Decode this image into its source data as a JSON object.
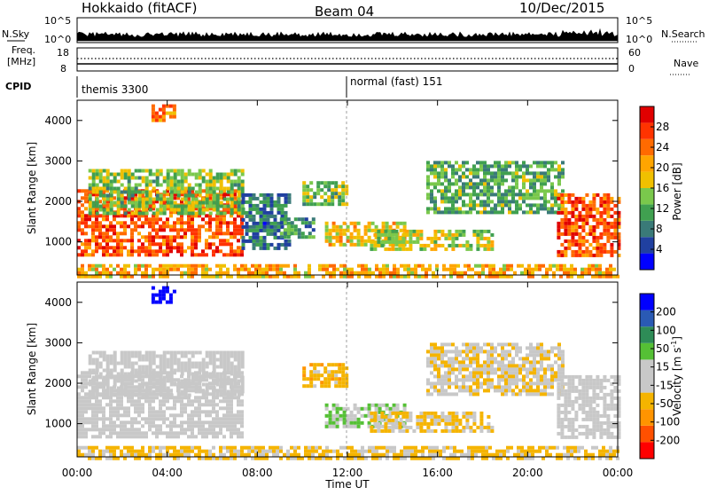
{
  "header": {
    "station": "Hokkaido (fitACF)",
    "beam": "Beam 04",
    "date": "10/Dec/2015"
  },
  "top_panels": {
    "nsky_label": "N.Sky",
    "nsearch_label": "N.Search",
    "noise_ticks": [
      "10^5",
      "10^0"
    ],
    "freq_label_line1": "Freq.",
    "freq_label_line2": "[MHz]",
    "freq_ticks": [
      "18",
      "8"
    ],
    "nave_label": "Nave",
    "nave_ticks": [
      "60",
      "0"
    ],
    "cpid_label": "CPID",
    "cpid_segments": [
      {
        "label": "themis 3300",
        "start_hour": 0,
        "end_hour": 12
      },
      {
        "label": "normal (fast) 151",
        "start_hour": 12,
        "end_hour": 24
      }
    ]
  },
  "colors": {
    "power_scale": [
      "#0000ff",
      "#2040a0",
      "#3a7a78",
      "#40a050",
      "#7ac84c",
      "#f0c000",
      "#ffa500",
      "#ff6a00",
      "#ff3300",
      "#e00000"
    ],
    "velocity_scale": [
      "#ff0000",
      "#ff5000",
      "#ff9400",
      "#f5b400",
      "#c8c8c8",
      "#c8c8c8",
      "#55c035",
      "#2e8c57",
      "#2a5ab4",
      "#0000ff"
    ]
  },
  "x_axis": {
    "label": "Time UT",
    "ticks": [
      "00:00",
      "04:00",
      "08:00",
      "12:00",
      "16:00",
      "20:00",
      "00:00"
    ]
  },
  "power_colorbar": {
    "label": "Power [dB]",
    "ticks": [
      "4",
      "8",
      "12",
      "16",
      "20",
      "24",
      "28"
    ]
  },
  "velocity_colorbar": {
    "label": "Velocity [m s",
    "label_exp": "-1",
    "label_end": "]",
    "ticks": [
      "-200",
      "-100",
      "-50",
      "-15",
      "15",
      "50",
      "100",
      "200"
    ]
  },
  "chart_data": [
    {
      "type": "heatmap",
      "quantity": "Power",
      "xlabel": "Time UT",
      "ylabel": "Slant Range [km]",
      "xlim": [
        0,
        24
      ],
      "ylim": [
        180,
        4500
      ],
      "y_ticks": [
        1000,
        2000,
        3000,
        4000
      ],
      "colorbar_range_db": [
        0,
        32
      ],
      "regions": [
        {
          "t0": 0,
          "t1": 7.3,
          "r0": 700,
          "r1": 2300,
          "value": 26
        },
        {
          "t0": 0.5,
          "t1": 7.3,
          "r0": 1700,
          "r1": 2800,
          "value": 14
        },
        {
          "t0": 7.3,
          "t1": 9.5,
          "r0": 800,
          "r1": 2200,
          "value": 8
        },
        {
          "t0": 9.0,
          "t1": 10.5,
          "r0": 1100,
          "r1": 1600,
          "value": 10
        },
        {
          "t0": 10.0,
          "t1": 12.0,
          "r0": 1900,
          "r1": 2500,
          "value": 14
        },
        {
          "t0": 11.0,
          "t1": 14.5,
          "r0": 900,
          "r1": 1500,
          "value": 18
        },
        {
          "t0": 13.0,
          "t1": 18.5,
          "r0": 850,
          "r1": 1300,
          "value": 16
        },
        {
          "t0": 15.5,
          "t1": 21.5,
          "r0": 1700,
          "r1": 3000,
          "value": 12
        },
        {
          "t0": 21.3,
          "t1": 24,
          "r0": 700,
          "r1": 2200,
          "value": 26
        },
        {
          "t0": 3.3,
          "t1": 4.3,
          "r0": 4000,
          "r1": 4400,
          "value": 22
        },
        {
          "t0": 0,
          "t1": 24,
          "r0": 180,
          "r1": 450,
          "value": 20
        }
      ]
    },
    {
      "type": "heatmap",
      "quantity": "Velocity",
      "xlabel": "Time UT",
      "ylabel": "Slant Range [km]",
      "xlim": [
        0,
        24
      ],
      "ylim": [
        180,
        4500
      ],
      "y_ticks": [
        1000,
        2000,
        3000,
        4000
      ],
      "colorbar_range_ms": [
        -200,
        200
      ],
      "regions": [
        {
          "t0": 0,
          "t1": 7.3,
          "r0": 700,
          "r1": 2300,
          "value": 0
        },
        {
          "t0": 0.5,
          "t1": 7.3,
          "r0": 1700,
          "r1": 2800,
          "value": 0
        },
        {
          "t0": 10.0,
          "t1": 12.0,
          "r0": 1900,
          "r1": 2500,
          "value": -60
        },
        {
          "t0": 11.0,
          "t1": 14.5,
          "r0": 900,
          "r1": 1500,
          "value": 40
        },
        {
          "t0": 13.0,
          "t1": 18.5,
          "r0": 850,
          "r1": 1300,
          "value": -40
        },
        {
          "t0": 15.5,
          "t1": 21.5,
          "r0": 1700,
          "r1": 3000,
          "value": -30
        },
        {
          "t0": 21.3,
          "t1": 24,
          "r0": 700,
          "r1": 2200,
          "value": 0
        },
        {
          "t0": 3.3,
          "t1": 4.3,
          "r0": 4000,
          "r1": 4400,
          "value": 200
        },
        {
          "t0": 0,
          "t1": 24,
          "r0": 180,
          "r1": 450,
          "value": -50
        }
      ]
    }
  ]
}
